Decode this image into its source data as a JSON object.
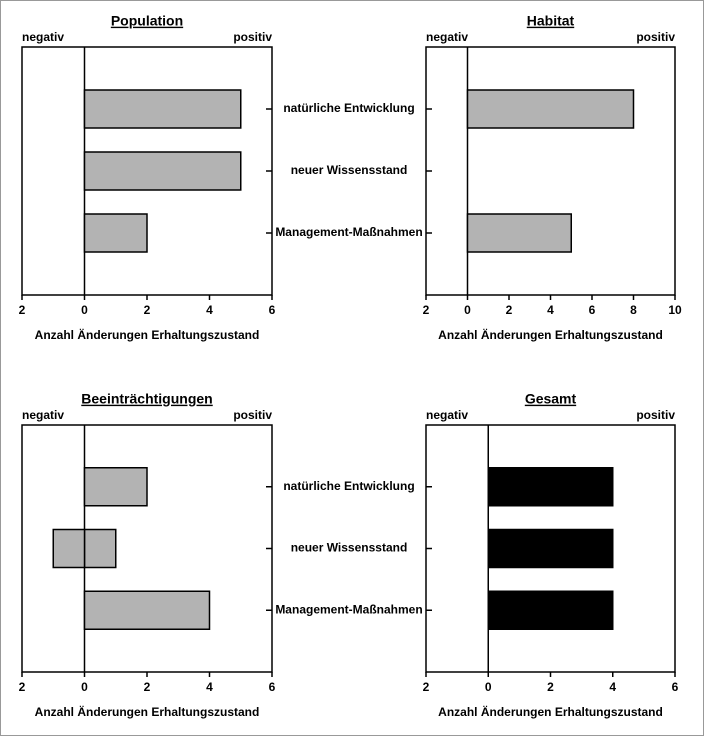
{
  "chart_data": [
    {
      "type": "bar",
      "orientation": "horizontal",
      "title": "Population",
      "left_label": "negativ",
      "right_label": "positiv",
      "xlabel": "Anzahl Änderungen Erhaltungszustand",
      "categories": [
        "natürliche Entwicklung",
        "neuer Wissensstand",
        "Management-Maßnahmen"
      ],
      "series": [
        {
          "color": "#b3b3b3",
          "values": [
            5,
            5,
            2
          ]
        }
      ],
      "xlim": [
        -2,
        6
      ],
      "xticks": [
        {
          "value": -2,
          "label": "2"
        },
        0,
        2,
        4,
        6
      ]
    },
    {
      "type": "bar",
      "orientation": "horizontal",
      "title": "Habitat",
      "left_label": "negativ",
      "right_label": "positiv",
      "xlabel": "Anzahl Änderungen Erhaltungszustand",
      "series": [
        {
          "color": "#b3b3b3",
          "values": [
            8,
            0,
            5
          ]
        }
      ],
      "xlim": [
        -2,
        10
      ],
      "xticks": [
        {
          "value": -2,
          "label": "2"
        },
        0,
        2,
        4,
        6,
        8,
        10
      ]
    },
    {
      "type": "bar",
      "orientation": "horizontal",
      "title": "Beeinträchtigungen",
      "left_label": "negativ",
      "right_label": "positiv",
      "xlabel": "Anzahl Änderungen Erhaltungszustand",
      "categories": [
        "natürliche Entwicklung",
        "neuer Wissensstand",
        "Management-Maßnahmen"
      ],
      "series": [
        {
          "color": "#b3b3b3",
          "values": [
            2,
            1,
            4
          ]
        },
        {
          "color": "#b3b3b3",
          "values": [
            0,
            -1,
            0
          ]
        }
      ],
      "xlim": [
        -2,
        6
      ],
      "xticks": [
        {
          "value": -2,
          "label": "2"
        },
        0,
        2,
        4,
        6
      ]
    },
    {
      "type": "bar",
      "orientation": "horizontal",
      "title": "Gesamt",
      "left_label": "negativ",
      "right_label": "positiv",
      "xlabel": "Anzahl Änderungen Erhaltungszustand",
      "series": [
        {
          "color": "#000000",
          "values": [
            4,
            4,
            4
          ]
        }
      ],
      "xlim": [
        -2,
        6
      ],
      "xticks": [
        {
          "value": -2,
          "label": "2"
        },
        0,
        2,
        4,
        6
      ]
    }
  ]
}
